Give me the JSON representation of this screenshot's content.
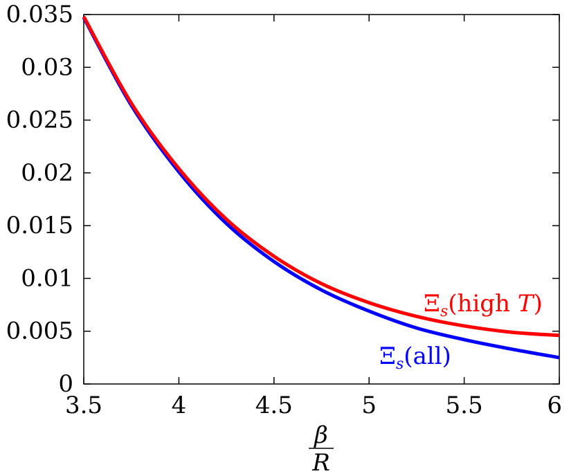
{
  "chart_data": {
    "type": "line",
    "title": "",
    "xlabel": {
      "numerator": "β",
      "denominator": "R"
    },
    "ylabel": "",
    "xlim": [
      3.5,
      6
    ],
    "ylim": [
      0,
      0.035
    ],
    "xticks": [
      "3.5",
      "4",
      "4.5",
      "5",
      "5.5",
      "6"
    ],
    "yticks": [
      "0",
      "0.005",
      "0.01",
      "0.015",
      "0.02",
      "0.025",
      "0.03",
      "0.035"
    ],
    "grid": false,
    "series": [
      {
        "name": "Ξs(high T)",
        "label_parts": {
          "symbol": "Ξ",
          "sub": "s",
          "pre": "(high ",
          "var": "T",
          "post": ")"
        },
        "color": "#ff0000",
        "x": [
          3.5,
          3.75,
          4.0,
          4.25,
          4.5,
          4.75,
          5.0,
          5.25,
          5.5,
          5.75,
          6.0
        ],
        "y": [
          0.0348,
          0.0266,
          0.0204,
          0.0156,
          0.0121,
          0.0095,
          0.0077,
          0.0064,
          0.0055,
          0.0049,
          0.0046
        ]
      },
      {
        "name": "Ξs(all)",
        "label_parts": {
          "symbol": "Ξ",
          "sub": "s",
          "pre": "(all)",
          "var": "",
          "post": ""
        },
        "color": "#0000ff",
        "x": [
          3.5,
          3.75,
          4.0,
          4.25,
          4.5,
          4.75,
          5.0,
          5.25,
          5.5,
          5.75,
          6.0
        ],
        "y": [
          0.0347,
          0.0264,
          0.0201,
          0.0152,
          0.0116,
          0.0089,
          0.0069,
          0.0053,
          0.0042,
          0.0033,
          0.0025
        ]
      }
    ]
  }
}
